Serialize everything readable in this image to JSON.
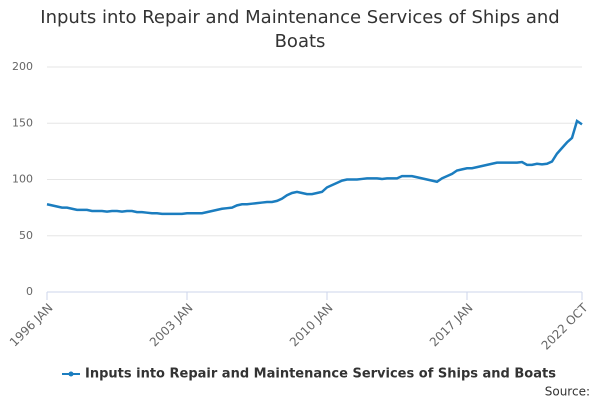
{
  "chart_data": {
    "type": "line",
    "title": "Inputs into Repair and Maintenance Services of Ships and Boats",
    "source": "Source:",
    "categories": [
      "1996 JAN",
      null,
      null,
      null,
      null,
      null,
      null,
      null,
      null,
      null,
      null,
      null,
      null,
      null,
      null,
      null,
      null,
      null,
      null,
      null,
      null,
      null,
      null,
      null,
      null,
      null,
      null,
      null,
      "2003 JAN",
      null,
      null,
      null,
      null,
      null,
      null,
      null,
      null,
      null,
      null,
      null,
      null,
      null,
      null,
      null,
      null,
      null,
      null,
      null,
      null,
      null,
      null,
      null,
      null,
      null,
      null,
      null,
      "2010 JAN",
      null,
      null,
      null,
      null,
      null,
      null,
      null,
      null,
      null,
      null,
      null,
      null,
      null,
      null,
      null,
      null,
      null,
      null,
      null,
      null,
      null,
      null,
      null,
      null,
      null,
      null,
      null,
      "2017 JAN",
      null,
      null,
      null,
      null,
      null,
      null,
      null,
      null,
      null,
      null,
      null,
      null,
      null,
      null,
      null,
      null,
      null,
      null,
      null,
      null,
      null,
      null,
      "2022 OCT"
    ],
    "series": [
      {
        "name": "Inputs into Repair and Maintenance Services of Ships and Boats",
        "color": "#1b7dbf",
        "values": [
          78,
          77,
          76,
          75,
          75,
          74,
          73,
          73,
          73,
          72,
          72,
          72,
          71.5,
          72,
          72,
          71.5,
          72,
          72,
          71,
          71,
          70.5,
          70,
          70,
          69.5,
          69.5,
          69.5,
          69.5,
          69.5,
          70,
          70,
          70,
          70,
          71,
          72,
          73,
          74,
          74.5,
          75,
          77,
          78,
          78,
          78.5,
          79,
          79.5,
          80,
          80,
          81,
          83,
          86,
          88,
          89,
          88,
          87,
          87,
          88,
          89,
          93,
          95,
          97,
          99,
          100,
          100,
          100,
          100.5,
          101,
          101,
          101,
          100.5,
          101,
          101,
          101,
          103,
          103,
          103,
          102,
          101,
          100,
          99,
          98,
          101,
          103,
          105,
          108,
          109,
          110,
          110,
          111,
          112,
          113,
          114,
          115,
          115,
          115,
          115,
          115,
          115.5,
          113,
          113,
          114,
          113.5,
          114,
          116,
          123,
          128,
          133,
          137,
          152,
          149
        ]
      }
    ],
    "ylim": [
      0,
      200
    ],
    "yticks": [
      0,
      50,
      100,
      150,
      200
    ],
    "grid": true
  }
}
